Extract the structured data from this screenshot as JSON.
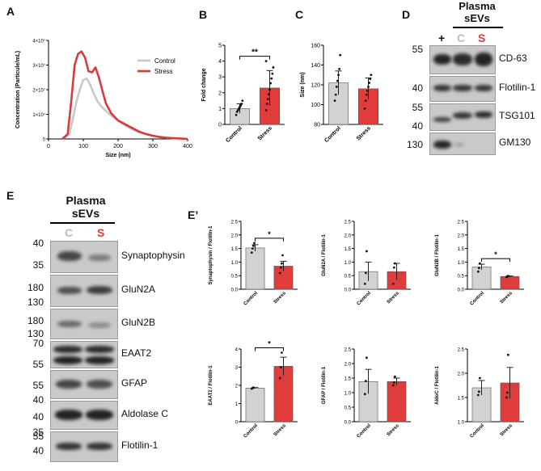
{
  "panels": {
    "A": "A",
    "B": "B",
    "C": "C",
    "D": "D",
    "E": "E",
    "E2": "E’"
  },
  "colors": {
    "control": "#d2d2d2",
    "stress": "#e03c3c",
    "control_line": "#c8c8c8",
    "stress_line": "#d93a3a"
  },
  "panelA": {
    "ylabel": "Concentration (Particule/mL)",
    "xlabel": "Size (nm)",
    "yticks": [
      "0",
      "1×10⁷",
      "2×10⁷",
      "3×10⁷",
      "4×10⁷"
    ],
    "xticks": [
      "0",
      "100",
      "200",
      "300",
      "400"
    ],
    "legend": [
      "Control",
      "Stress"
    ]
  },
  "panelB": {
    "ylabel": "Fold change",
    "yticks": [
      "0",
      "1",
      "2",
      "3",
      "4",
      "5"
    ],
    "xticks": [
      "Control",
      "Stress"
    ],
    "sig": "**"
  },
  "panelC": {
    "ylabel": "Size (nm)",
    "yticks": [
      "80",
      "100",
      "120",
      "140",
      "160"
    ],
    "xticks": [
      "Control",
      "Stress"
    ]
  },
  "panelD": {
    "header": [
      "Plasma",
      "sEVs"
    ],
    "lanes": [
      "+",
      "C",
      "S"
    ],
    "blots": [
      {
        "name": "CD-63",
        "markers": [
          "55"
        ]
      },
      {
        "name": "Flotilin-1",
        "markers": [
          "40"
        ]
      },
      {
        "name": "TSG101",
        "markers": [
          "55",
          "40"
        ]
      },
      {
        "name": "GM130",
        "markers": [
          "130"
        ]
      }
    ]
  },
  "panelE": {
    "header": [
      "Plasma",
      "sEVs"
    ],
    "lanes": [
      "C",
      "S"
    ],
    "blots": [
      {
        "name": "Synaptophysin",
        "markers": [
          "40",
          "35"
        ]
      },
      {
        "name": "GluN2A",
        "markers": [
          "180",
          "130"
        ]
      },
      {
        "name": "GluN2B",
        "markers": [
          "180",
          "130"
        ]
      },
      {
        "name": "EAAT2",
        "markers": [
          "70",
          "55"
        ]
      },
      {
        "name": "GFAP",
        "markers": [
          "55",
          "40"
        ]
      },
      {
        "name": "Aldolase C",
        "markers": [
          "40",
          "35"
        ]
      },
      {
        "name": "Flotilin-1",
        "markers": [
          "55",
          "40"
        ]
      }
    ]
  },
  "chart_data": [
    {
      "type": "line",
      "id": "A",
      "xlabel": "Size (nm)",
      "ylabel": "Concentration (Particule/mL)",
      "xlim": [
        0,
        400
      ],
      "ylim": [
        0,
        40000000
      ],
      "series": [
        {
          "name": "Control",
          "x": [
            40,
            60,
            70,
            80,
            90,
            100,
            110,
            120,
            130,
            140,
            150,
            160,
            180,
            200,
            220,
            240,
            260,
            280,
            300,
            320,
            340,
            360,
            380,
            400
          ],
          "y": [
            0,
            2000000,
            8000000,
            15000000,
            20000000,
            24000000,
            24500000,
            22000000,
            18500000,
            15500000,
            13500000,
            12000000,
            9500000,
            7500000,
            5500000,
            4000000,
            2800000,
            2000000,
            1300000,
            800000,
            500000,
            300000,
            150000,
            0
          ]
        },
        {
          "name": "Stress",
          "x": [
            40,
            55,
            65,
            75,
            85,
            95,
            105,
            115,
            125,
            135,
            145,
            155,
            165,
            180,
            200,
            220,
            240,
            260,
            280,
            300,
            320,
            340,
            360,
            380,
            400
          ],
          "y": [
            0,
            2000000,
            15000000,
            30000000,
            34500000,
            35500000,
            33000000,
            27500000,
            27000000,
            29000000,
            25000000,
            19500000,
            14500000,
            10500000,
            7500000,
            6000000,
            4500000,
            3000000,
            2000000,
            1300000,
            800000,
            500000,
            300000,
            150000,
            0
          ]
        }
      ]
    },
    {
      "type": "bar",
      "id": "B",
      "ylabel": "Fold change",
      "categories": [
        "Control",
        "Stress"
      ],
      "values": [
        1.0,
        2.3
      ],
      "errors": [
        0.3,
        1.1
      ],
      "ylim": [
        0,
        5
      ],
      "significance": "**",
      "points": [
        [
          0.6,
          0.8,
          0.9,
          1.0,
          1.1,
          1.2,
          1.3,
          1.5
        ],
        [
          0.9,
          1.3,
          1.6,
          1.9,
          2.2,
          2.6,
          2.9,
          3.2,
          3.6,
          4.0
        ]
      ]
    },
    {
      "type": "bar",
      "id": "C",
      "ylabel": "Size (nm)",
      "categories": [
        "Control",
        "Stress"
      ],
      "values": [
        122,
        116
      ],
      "errors": [
        12,
        11
      ],
      "ylim": [
        80,
        160
      ],
      "points": [
        [
          104,
          110,
          118,
          124,
          130,
          136,
          150
        ],
        [
          96,
          104,
          110,
          114,
          118,
          122,
          126,
          130
        ]
      ]
    },
    {
      "type": "bar",
      "id": "E1",
      "ylabel": "Synaptophysin / Flotilin-1",
      "categories": [
        "Control",
        "Stress"
      ],
      "values": [
        1.52,
        0.85
      ],
      "errors": [
        0.12,
        0.18
      ],
      "ylim": [
        0,
        2.5
      ],
      "significance": "*",
      "points": [
        [
          1.35,
          1.5,
          1.6,
          1.7
        ],
        [
          0.6,
          0.8,
          0.95,
          1.25
        ]
      ]
    },
    {
      "type": "bar",
      "id": "E2",
      "ylabel": "GluN2A / Flotilin-1",
      "categories": [
        "Control",
        "Stress"
      ],
      "values": [
        0.65,
        0.65
      ],
      "errors": [
        0.35,
        0.3
      ],
      "ylim": [
        0,
        2.5
      ],
      "points": [
        [
          0.2,
          0.6,
          1.4
        ],
        [
          0.2,
          0.8,
          0.95
        ]
      ]
    },
    {
      "type": "bar",
      "id": "E3",
      "ylabel": "GluN2B / Flotilin-1",
      "categories": [
        "Control",
        "Stress"
      ],
      "values": [
        0.82,
        0.47
      ],
      "errors": [
        0.1,
        0.02
      ],
      "ylim": [
        0,
        2.5
      ],
      "significance": "*",
      "points": [
        [
          0.65,
          0.78,
          0.95
        ],
        [
          0.45,
          0.47,
          0.49
        ]
      ]
    },
    {
      "type": "bar",
      "id": "E4",
      "ylabel": "EAAT2 / Flotilin-1",
      "categories": [
        "Control",
        "Stress"
      ],
      "values": [
        1.85,
        3.05
      ],
      "errors": [
        0.03,
        0.5
      ],
      "ylim": [
        0,
        4
      ],
      "significance": "*",
      "points": [
        [
          1.82,
          1.85,
          1.88
        ],
        [
          2.4,
          3.0,
          3.8
        ]
      ]
    },
    {
      "type": "bar",
      "id": "E5",
      "ylabel": "GFAP / Flotilin-1",
      "categories": [
        "Control",
        "Stress"
      ],
      "values": [
        1.38,
        1.38
      ],
      "errors": [
        0.42,
        0.12
      ],
      "ylim": [
        0,
        2.5
      ],
      "points": [
        [
          0.95,
          1.4,
          2.2
        ],
        [
          1.25,
          1.35,
          1.55
        ]
      ]
    },
    {
      "type": "bar",
      "id": "E6",
      "ylabel": "AldoC / Flotilin-1",
      "categories": [
        "Control",
        "Stress"
      ],
      "values": [
        1.7,
        1.8
      ],
      "errors": [
        0.15,
        0.32
      ],
      "ylim": [
        1.0,
        2.5
      ],
      "points": [
        [
          1.55,
          1.62,
          1.9
        ],
        [
          1.5,
          1.6,
          2.38
        ]
      ]
    }
  ]
}
